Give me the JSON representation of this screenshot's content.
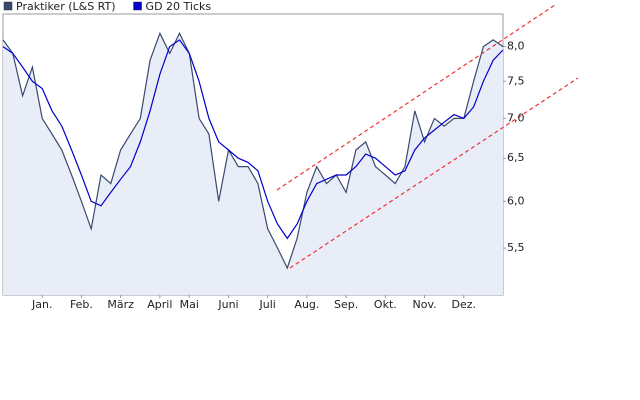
{
  "chart_data": {
    "type": "line",
    "categories": [
      null,
      null,
      null,
      null,
      "Jan.",
      null,
      null,
      null,
      "Feb.",
      null,
      null,
      null,
      "März",
      null,
      null,
      null,
      "April",
      null,
      null,
      "Mai",
      null,
      null,
      null,
      "Juni",
      null,
      null,
      null,
      "Juli",
      null,
      null,
      null,
      "Aug.",
      null,
      null,
      null,
      "Sep.",
      null,
      null,
      null,
      "Okt.",
      null,
      null,
      null,
      "Nov.",
      null,
      null,
      null,
      "Dez.",
      null,
      null,
      null,
      null
    ],
    "series": [
      {
        "name": "Praktiker (L&S RT)",
        "color": "#3a4a6e",
        "fill": "#e9edf8",
        "values": [
          8.1,
          7.9,
          7.3,
          7.7,
          7.0,
          6.8,
          6.6,
          6.3,
          6.0,
          5.7,
          6.3,
          6.2,
          6.6,
          6.8,
          7.0,
          7.8,
          8.2,
          7.9,
          8.2,
          7.9,
          7.0,
          6.8,
          6.0,
          6.6,
          6.4,
          6.4,
          6.2,
          5.7,
          5.5,
          5.3,
          5.6,
          6.1,
          6.4,
          6.2,
          6.3,
          6.1,
          6.6,
          6.7,
          6.4,
          6.3,
          6.2,
          6.4,
          7.1,
          6.7,
          7.0,
          6.9,
          7.0,
          7.0,
          7.5,
          8.0,
          8.1,
          8.0
        ]
      },
      {
        "name": "GD 20 Ticks",
        "color": "#0000cc",
        "values": [
          8.0,
          7.9,
          7.7,
          7.5,
          7.4,
          7.1,
          6.9,
          6.6,
          6.3,
          6.0,
          5.95,
          6.1,
          6.25,
          6.4,
          6.7,
          7.1,
          7.6,
          8.0,
          8.1,
          7.9,
          7.5,
          7.0,
          6.7,
          6.6,
          6.5,
          6.45,
          6.35,
          6.0,
          5.75,
          5.6,
          5.75,
          6.0,
          6.2,
          6.25,
          6.3,
          6.3,
          6.4,
          6.55,
          6.5,
          6.4,
          6.3,
          6.35,
          6.6,
          6.75,
          6.85,
          6.95,
          7.05,
          7.0,
          7.15,
          7.5,
          7.8,
          7.95
        ]
      }
    ],
    "ylim": [
      5.04,
      8.5
    ],
    "log_scale": true,
    "grid": false,
    "yticks": [
      {
        "value": 5.5,
        "label": "5,5"
      },
      {
        "value": 6,
        "label": "6,0"
      },
      {
        "value": 6.5,
        "label": "6,5"
      },
      {
        "value": 7,
        "label": "7,0"
      },
      {
        "value": 7.5,
        "label": "7,5"
      },
      {
        "value": 8,
        "label": "8,0"
      }
    ],
    "legend": "top-left"
  }
}
